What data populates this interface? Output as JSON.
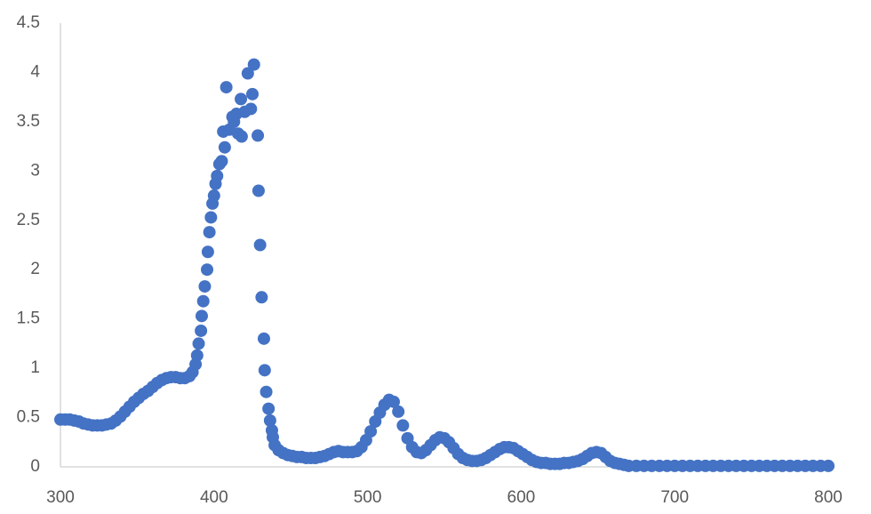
{
  "chart_data": {
    "type": "scatter",
    "color": "#4472c4",
    "x": [
      300,
      303,
      306,
      309,
      312,
      315,
      318,
      321,
      324,
      327,
      330,
      333,
      336,
      339,
      342,
      345,
      348,
      351,
      354,
      357,
      360,
      363,
      366,
      369,
      372,
      375,
      378,
      381,
      384,
      386,
      388,
      389,
      390,
      391.5,
      392,
      393,
      394,
      395.5,
      396,
      397,
      398,
      399,
      400,
      401,
      402,
      403.5,
      405,
      406,
      407,
      408,
      410,
      412,
      413,
      414.6,
      415.7,
      417.5,
      418,
      420,
      422,
      424,
      425,
      426,
      428.5,
      429,
      430,
      431,
      432.5,
      433,
      434,
      435.5,
      436.5,
      437.7,
      438.3,
      439.5,
      442,
      445,
      448,
      451,
      454,
      457,
      460,
      463,
      466,
      469,
      472,
      475,
      478,
      481,
      484,
      487,
      490,
      493,
      496,
      499,
      502,
      505,
      508,
      511,
      514,
      517,
      520,
      523,
      526,
      529,
      532,
      535,
      538,
      541,
      544,
      547,
      550,
      553,
      556,
      559,
      562,
      565,
      568,
      571,
      574,
      577,
      580,
      583,
      586,
      589,
      592,
      595,
      598,
      601,
      604,
      607,
      610,
      613,
      616,
      619,
      622,
      625,
      628,
      631,
      634,
      637,
      640,
      643,
      646,
      649,
      652,
      655,
      658,
      661,
      664,
      667,
      670,
      675,
      680,
      685,
      690,
      695,
      700,
      705,
      710,
      715,
      720,
      725,
      730,
      735,
      740,
      745,
      750,
      755,
      760,
      765,
      770,
      775,
      780,
      785,
      790,
      795,
      800
    ],
    "values": [
      0.48,
      0.48,
      0.48,
      0.47,
      0.46,
      0.44,
      0.43,
      0.42,
      0.42,
      0.42,
      0.43,
      0.44,
      0.47,
      0.51,
      0.56,
      0.61,
      0.66,
      0.7,
      0.74,
      0.77,
      0.81,
      0.85,
      0.88,
      0.9,
      0.91,
      0.91,
      0.9,
      0.9,
      0.92,
      0.96,
      1.04,
      1.13,
      1.25,
      1.38,
      1.53,
      1.68,
      1.83,
      2.0,
      2.18,
      2.38,
      2.53,
      2.67,
      2.75,
      2.87,
      2.95,
      3.07,
      3.1,
      3.4,
      3.24,
      3.85,
      3.42,
      3.55,
      3.5,
      3.58,
      3.38,
      3.73,
      3.35,
      3.6,
      3.99,
      3.63,
      3.78,
      4.08,
      3.36,
      2.8,
      2.25,
      1.72,
      1.3,
      0.98,
      0.76,
      0.59,
      0.47,
      0.37,
      0.3,
      0.22,
      0.17,
      0.14,
      0.12,
      0.11,
      0.1,
      0.1,
      0.09,
      0.09,
      0.09,
      0.1,
      0.11,
      0.13,
      0.15,
      0.16,
      0.15,
      0.15,
      0.15,
      0.16,
      0.2,
      0.27,
      0.36,
      0.46,
      0.55,
      0.63,
      0.68,
      0.66,
      0.56,
      0.42,
      0.29,
      0.2,
      0.15,
      0.14,
      0.17,
      0.22,
      0.27,
      0.3,
      0.29,
      0.25,
      0.19,
      0.13,
      0.09,
      0.07,
      0.06,
      0.06,
      0.07,
      0.09,
      0.12,
      0.15,
      0.18,
      0.2,
      0.2,
      0.19,
      0.16,
      0.13,
      0.1,
      0.07,
      0.05,
      0.04,
      0.04,
      0.03,
      0.03,
      0.03,
      0.04,
      0.04,
      0.05,
      0.06,
      0.08,
      0.11,
      0.14,
      0.15,
      0.14,
      0.1,
      0.06,
      0.04,
      0.03,
      0.02,
      0.01,
      0.01,
      0.01,
      0.01,
      0.01,
      0.01,
      0.01,
      0.01,
      0.01,
      0.01,
      0.01,
      0.01,
      0.01,
      0.01,
      0.01,
      0.01,
      0.01,
      0.01,
      0.01,
      0.01,
      0.01,
      0.01,
      0.01,
      0.01,
      0.01,
      0.01,
      0.01
    ],
    "xlim": [
      300,
      800
    ],
    "xticks": [
      300,
      400,
      500,
      600,
      700,
      800
    ],
    "ylim": [
      0,
      4.5
    ],
    "yticks": [
      0,
      0.5,
      1,
      1.5,
      2,
      2.5,
      3,
      3.5,
      4,
      4.5
    ],
    "grid": false
  }
}
